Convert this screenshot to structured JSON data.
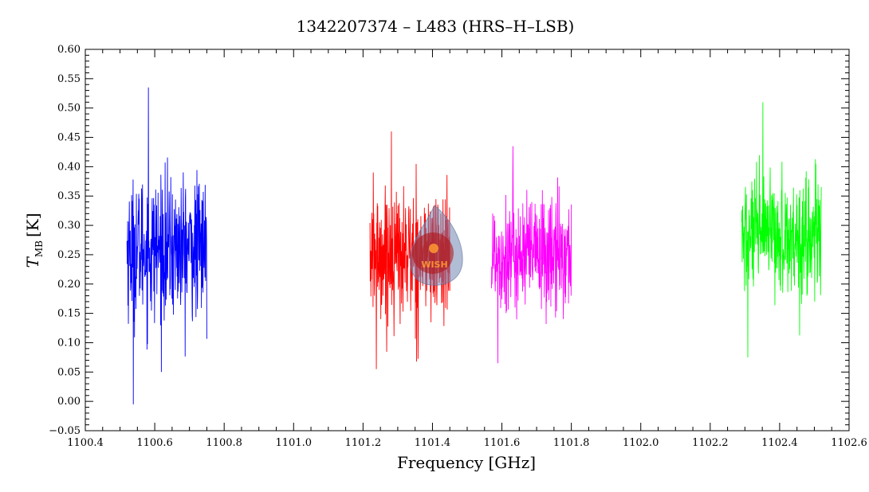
{
  "chart_data": {
    "type": "line",
    "title": "1342207374 – L483 (HRS–H–LSB)",
    "xlabel": "Frequency [GHz]",
    "ylabel": {
      "symbol": "T",
      "subscript": "MB",
      "unit": "[K]"
    },
    "xlim": [
      1100.4,
      1102.6
    ],
    "ylim": [
      -0.05,
      0.6
    ],
    "x_ticks": [
      "1100.4",
      "1100.6",
      "1100.8",
      "1101.0",
      "1101.2",
      "1101.4",
      "1101.6",
      "1101.8",
      "1102.0",
      "1102.2",
      "1102.4",
      "1102.6"
    ],
    "y_ticks": [
      "−0.05",
      "0.00",
      "0.05",
      "0.10",
      "0.15",
      "0.20",
      "0.25",
      "0.30",
      "0.35",
      "0.40",
      "0.45",
      "0.50",
      "0.55",
      "0.60"
    ],
    "grid": false,
    "series": [
      {
        "color": "#0000ff",
        "x_range": [
          1100.52,
          1100.75
        ],
        "mean": 0.26,
        "spread": 0.06,
        "min": -0.005,
        "max": 0.535
      },
      {
        "color": "#ff0000",
        "x_range": [
          1101.22,
          1101.45
        ],
        "mean": 0.25,
        "spread": 0.055,
        "min": 0.055,
        "max": 0.46
      },
      {
        "color": "#ff00ff",
        "x_range": [
          1101.57,
          1101.8
        ],
        "mean": 0.25,
        "spread": 0.05,
        "min": 0.065,
        "max": 0.435
      },
      {
        "color": "#00ff00",
        "x_range": [
          1102.29,
          1102.52
        ],
        "mean": 0.28,
        "spread": 0.05,
        "min": 0.075,
        "max": 0.51
      }
    ],
    "logo": {
      "name": "wish-logo",
      "text": "WISH"
    }
  }
}
